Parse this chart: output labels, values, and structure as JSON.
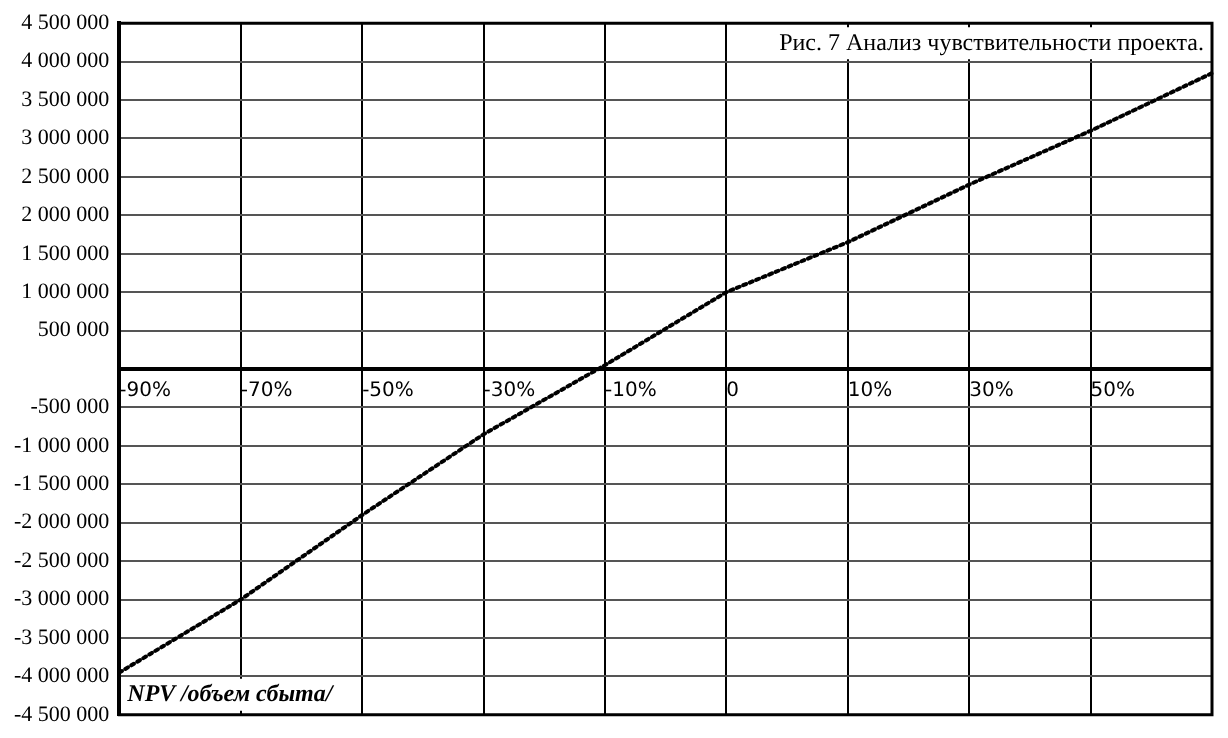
{
  "chart_data": {
    "type": "line",
    "title": "Рис. 7 Анализ чувствительности проекта.",
    "xlabel": "NPV /объем сбыта/",
    "categories": [
      "-90%",
      "-70%",
      "-50%",
      "-30%",
      "-10%",
      "0",
      "10%",
      "30%",
      "50%",
      null
    ],
    "series": [
      {
        "color": "#000000",
        "values": [
          -3950000,
          -3000000,
          -1900000,
          -850000,
          50000,
          1000000,
          1650000,
          2400000,
          3100000,
          3850000
        ]
      }
    ],
    "ylim": [
      -4500000,
      4500000
    ],
    "yticks": [
      -4500000,
      -4000000,
      -3500000,
      -3000000,
      -2500000,
      -2000000,
      -1500000,
      -1000000,
      -500000,
      {
        "value": 0,
        "label": null
      },
      500000,
      1000000,
      1500000,
      2000000,
      2500000,
      3000000,
      3500000,
      4000000,
      4500000
    ],
    "grid": true,
    "legend": false,
    "marker": "none",
    "line_style": "dotted"
  }
}
